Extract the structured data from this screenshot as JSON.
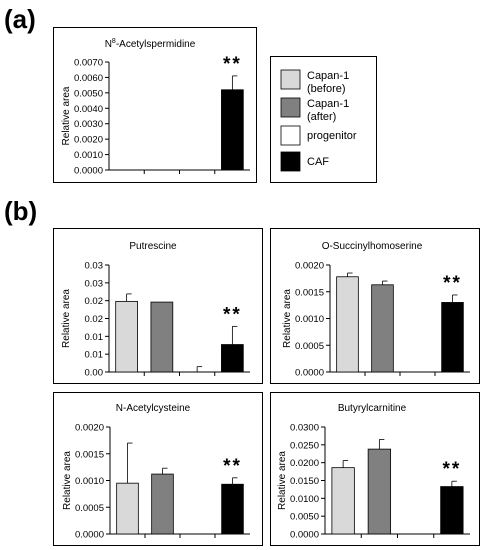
{
  "panels": {
    "a": "(a)",
    "b": "(b)"
  },
  "legend": {
    "items": [
      {
        "label": "Capan-1 (before)",
        "lines": [
          "Capan-1",
          "(before)"
        ],
        "color": "#d9d9d9"
      },
      {
        "label": "Capan-1 (after)",
        "lines": [
          "Capan-1",
          "(after)"
        ],
        "color": "#808080"
      },
      {
        "label": "progenitor",
        "lines": [
          "progenitor"
        ],
        "color": "#ffffff"
      },
      {
        "label": "CAF",
        "lines": [
          "CAF"
        ],
        "color": "#000000"
      }
    ]
  },
  "chart_data": [
    {
      "type": "bar",
      "title": "N8-Acetylspermidine",
      "title_main": "N",
      "title_sup": "8",
      "title_rest": "-Acetylspermidine",
      "ylabel": "Relative area",
      "ylim": [
        0,
        0.007
      ],
      "yticks": [
        "0.0000",
        "0.0010",
        "0.0020",
        "0.0030",
        "0.0040",
        "0.0050",
        "0.0060",
        "0.0070"
      ],
      "categories": [
        "Capan-1 (before)",
        "Capan-1 (after)",
        "progenitor",
        "CAF"
      ],
      "values": [
        0,
        0,
        0,
        0.0052
      ],
      "errors": [
        0,
        0,
        0,
        0.0009
      ],
      "significance": [
        null,
        null,
        null,
        "**"
      ]
    },
    {
      "type": "bar",
      "title": "Putrescine",
      "ylabel": "Relative area",
      "ylim": [
        0,
        0.03
      ],
      "yticks": [
        "0.00",
        "0.01",
        "0.01",
        "0.02",
        "0.02",
        "0.03",
        "0.03"
      ],
      "categories": [
        "Capan-1 (before)",
        "Capan-1 (after)",
        "progenitor",
        "CAF"
      ],
      "values": [
        0.0198,
        0.0196,
        0,
        0.0077
      ],
      "errors": [
        0.0021,
        0,
        0.0015,
        0.0051
      ],
      "significance": [
        null,
        null,
        null,
        "**"
      ]
    },
    {
      "type": "bar",
      "title": "O-Succinylhomoserine",
      "ylabel": "Relative area",
      "ylim": [
        0,
        0.002
      ],
      "yticks": [
        "0.0000",
        "0.0005",
        "0.0010",
        "0.0015",
        "0.0020"
      ],
      "categories": [
        "Capan-1 (before)",
        "Capan-1 (after)",
        "progenitor",
        "CAF"
      ],
      "values": [
        0.00178,
        0.00163,
        0,
        0.0013
      ],
      "errors": [
        7e-05,
        7e-05,
        0,
        0.00014
      ],
      "significance": [
        null,
        null,
        null,
        "**"
      ]
    },
    {
      "type": "bar",
      "title": "N-Acetylcysteine",
      "ylabel": "Relative area",
      "ylim": [
        0,
        0.002
      ],
      "yticks": [
        "0.0000",
        "0.0005",
        "0.0010",
        "0.0015",
        "0.0020"
      ],
      "categories": [
        "Capan-1 (before)",
        "Capan-1 (after)",
        "progenitor",
        "CAF"
      ],
      "values": [
        0.00095,
        0.00112,
        0,
        0.00093
      ],
      "errors": [
        0.00075,
        0.00011,
        0,
        0.00012
      ],
      "significance": [
        null,
        null,
        null,
        "**"
      ]
    },
    {
      "type": "bar",
      "title": "Butyrylcarnitine",
      "ylabel": "Relative area",
      "ylim": [
        0,
        0.03
      ],
      "yticks": [
        "0.0000",
        "0.0050",
        "0.0100",
        "0.0150",
        "0.0200",
        "0.0250",
        "0.0300"
      ],
      "categories": [
        "Capan-1 (before)",
        "Capan-1 (after)",
        "progenitor",
        "CAF"
      ],
      "values": [
        0.0186,
        0.0238,
        0,
        0.0133
      ],
      "errors": [
        0.002,
        0.0027,
        0,
        0.0015
      ],
      "significance": [
        null,
        null,
        null,
        "**"
      ]
    }
  ]
}
